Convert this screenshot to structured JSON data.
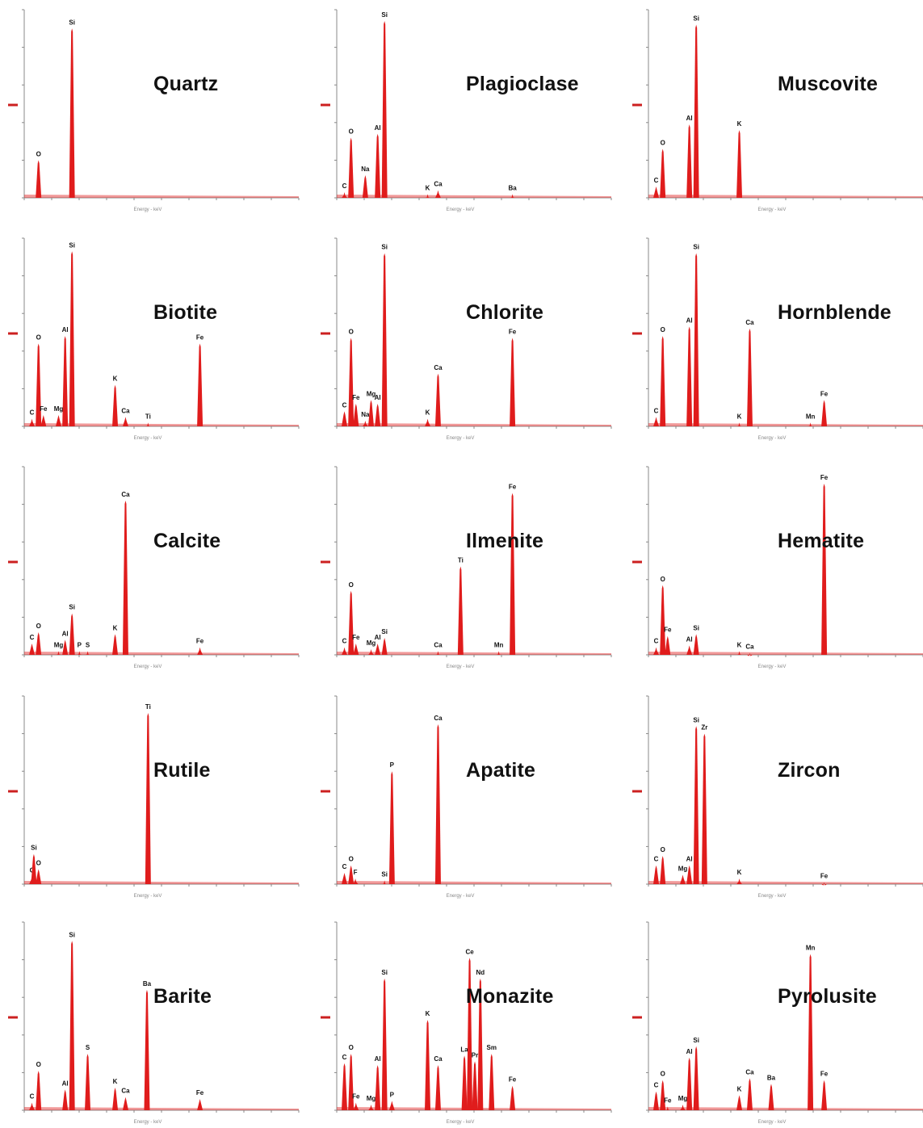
{
  "figure": {
    "x_axis_label": "Energy - keV",
    "colors": {
      "spectrum": "#e01c1c",
      "axis": "#888888",
      "marker": "#cc2020",
      "text": "#111111"
    }
  },
  "chart_data": [
    {
      "type": "area",
      "title": "Quartz",
      "x_range": [
        0,
        10
      ],
      "y_range": [
        0,
        1
      ],
      "peaks": [
        {
          "element": "O",
          "kev": 0.52,
          "height": 0.2
        },
        {
          "element": "Si",
          "kev": 1.74,
          "height": 0.9
        }
      ]
    },
    {
      "type": "area",
      "title": "Plagioclase",
      "x_range": [
        0,
        10
      ],
      "y_range": [
        0,
        1
      ],
      "peaks": [
        {
          "element": "C",
          "kev": 0.28,
          "height": 0.03
        },
        {
          "element": "O",
          "kev": 0.52,
          "height": 0.32
        },
        {
          "element": "Na",
          "kev": 1.04,
          "height": 0.12
        },
        {
          "element": "Al",
          "kev": 1.49,
          "height": 0.34
        },
        {
          "element": "Si",
          "kev": 1.74,
          "height": 0.94
        },
        {
          "element": "K",
          "kev": 3.31,
          "height": 0.02
        },
        {
          "element": "Ca",
          "kev": 3.69,
          "height": 0.04
        },
        {
          "element": "Ba",
          "kev": 6.4,
          "height": 0.02
        }
      ]
    },
    {
      "type": "area",
      "title": "Muscovite",
      "x_range": [
        0,
        10
      ],
      "y_range": [
        0,
        1
      ],
      "peaks": [
        {
          "element": "C",
          "kev": 0.28,
          "height": 0.06
        },
        {
          "element": "O",
          "kev": 0.52,
          "height": 0.26
        },
        {
          "element": "Al",
          "kev": 1.49,
          "height": 0.39
        },
        {
          "element": "Si",
          "kev": 1.74,
          "height": 0.92
        },
        {
          "element": "K",
          "kev": 3.31,
          "height": 0.36
        }
      ]
    },
    {
      "type": "area",
      "title": "Biotite",
      "x_range": [
        0,
        10
      ],
      "y_range": [
        0,
        1
      ],
      "peaks": [
        {
          "element": "C",
          "kev": 0.28,
          "height": 0.04
        },
        {
          "element": "O",
          "kev": 0.52,
          "height": 0.44
        },
        {
          "element": "Fe",
          "kev": 0.7,
          "height": 0.06
        },
        {
          "element": "Mg",
          "kev": 1.25,
          "height": 0.06
        },
        {
          "element": "Al",
          "kev": 1.49,
          "height": 0.48
        },
        {
          "element": "Si",
          "kev": 1.74,
          "height": 0.93
        },
        {
          "element": "K",
          "kev": 3.31,
          "height": 0.22
        },
        {
          "element": "Ca",
          "kev": 3.69,
          "height": 0.05
        },
        {
          "element": "Ti",
          "kev": 4.51,
          "height": 0.02
        },
        {
          "element": "Fe",
          "kev": 6.4,
          "height": 0.44
        }
      ]
    },
    {
      "type": "area",
      "title": "Chlorite",
      "x_range": [
        0,
        10
      ],
      "y_range": [
        0,
        1
      ],
      "peaks": [
        {
          "element": "C",
          "kev": 0.28,
          "height": 0.08
        },
        {
          "element": "O",
          "kev": 0.52,
          "height": 0.47
        },
        {
          "element": "Fe",
          "kev": 0.7,
          "height": 0.12
        },
        {
          "element": "Na",
          "kev": 1.04,
          "height": 0.03
        },
        {
          "element": "Mg",
          "kev": 1.25,
          "height": 0.14
        },
        {
          "element": "Al",
          "kev": 1.49,
          "height": 0.12
        },
        {
          "element": "Si",
          "kev": 1.74,
          "height": 0.92
        },
        {
          "element": "K",
          "kev": 3.31,
          "height": 0.04
        },
        {
          "element": "Ca",
          "kev": 3.69,
          "height": 0.28
        },
        {
          "element": "Fe",
          "kev": 6.4,
          "height": 0.47
        }
      ]
    },
    {
      "type": "area",
      "title": "Hornblende",
      "x_range": [
        0,
        10
      ],
      "y_range": [
        0,
        1
      ],
      "peaks": [
        {
          "element": "C",
          "kev": 0.28,
          "height": 0.05
        },
        {
          "element": "O",
          "kev": 0.52,
          "height": 0.48
        },
        {
          "element": "Al",
          "kev": 1.49,
          "height": 0.53
        },
        {
          "element": "Si",
          "kev": 1.74,
          "height": 0.92
        },
        {
          "element": "K",
          "kev": 3.31,
          "height": 0.02
        },
        {
          "element": "Ca",
          "kev": 3.69,
          "height": 0.52
        },
        {
          "element": "Mn",
          "kev": 5.9,
          "height": 0.02
        },
        {
          "element": "Fe",
          "kev": 6.4,
          "height": 0.14
        }
      ]
    },
    {
      "type": "area",
      "title": "Calcite",
      "x_range": [
        0,
        10
      ],
      "y_range": [
        0,
        1
      ],
      "peaks": [
        {
          "element": "C",
          "kev": 0.28,
          "height": 0.06
        },
        {
          "element": "O",
          "kev": 0.52,
          "height": 0.12
        },
        {
          "element": "Mg",
          "kev": 1.25,
          "height": 0.02
        },
        {
          "element": "Al",
          "kev": 1.49,
          "height": 0.08
        },
        {
          "element": "Si",
          "kev": 1.74,
          "height": 0.22
        },
        {
          "element": "P",
          "kev": 2.01,
          "height": 0.02
        },
        {
          "element": "S",
          "kev": 2.31,
          "height": 0.02
        },
        {
          "element": "K",
          "kev": 3.31,
          "height": 0.11
        },
        {
          "element": "Ca",
          "kev": 3.69,
          "height": 0.82
        },
        {
          "element": "Fe",
          "kev": 6.4,
          "height": 0.04
        }
      ]
    },
    {
      "type": "area",
      "title": "Ilmenite",
      "x_range": [
        0,
        10
      ],
      "y_range": [
        0,
        1
      ],
      "peaks": [
        {
          "element": "C",
          "kev": 0.28,
          "height": 0.04
        },
        {
          "element": "O",
          "kev": 0.52,
          "height": 0.34
        },
        {
          "element": "Fe",
          "kev": 0.7,
          "height": 0.06
        },
        {
          "element": "Mg",
          "kev": 1.25,
          "height": 0.03
        },
        {
          "element": "Al",
          "kev": 1.49,
          "height": 0.06
        },
        {
          "element": "Si",
          "kev": 1.74,
          "height": 0.09
        },
        {
          "element": "Ca",
          "kev": 3.69,
          "height": 0.02
        },
        {
          "element": "Ti",
          "kev": 4.51,
          "height": 0.47
        },
        {
          "element": "Mn",
          "kev": 5.9,
          "height": 0.02
        },
        {
          "element": "Fe",
          "kev": 6.4,
          "height": 0.86
        }
      ]
    },
    {
      "type": "area",
      "title": "Hematite",
      "x_range": [
        0,
        10
      ],
      "y_range": [
        0,
        1
      ],
      "peaks": [
        {
          "element": "C",
          "kev": 0.28,
          "height": 0.04
        },
        {
          "element": "O",
          "kev": 0.52,
          "height": 0.37
        },
        {
          "element": "Fe",
          "kev": 0.7,
          "height": 0.1
        },
        {
          "element": "Al",
          "kev": 1.49,
          "height": 0.05
        },
        {
          "element": "Si",
          "kev": 1.74,
          "height": 0.11
        },
        {
          "element": "K",
          "kev": 3.31,
          "height": 0.02
        },
        {
          "element": "Ca",
          "kev": 3.69,
          "height": 0.01
        },
        {
          "element": "Fe",
          "kev": 6.4,
          "height": 0.91
        }
      ]
    },
    {
      "type": "area",
      "title": "Rutile",
      "x_range": [
        0,
        10
      ],
      "y_range": [
        0,
        1
      ],
      "peaks": [
        {
          "element": "C",
          "kev": 0.28,
          "height": 0.04
        },
        {
          "element": "Si",
          "kev": 0.35,
          "height": 0.16
        },
        {
          "element": "O",
          "kev": 0.52,
          "height": 0.08
        },
        {
          "element": "Ti",
          "kev": 4.51,
          "height": 0.91
        }
      ]
    },
    {
      "type": "area",
      "title": "Apatite",
      "x_range": [
        0,
        10
      ],
      "y_range": [
        0,
        1
      ],
      "peaks": [
        {
          "element": "C",
          "kev": 0.28,
          "height": 0.06
        },
        {
          "element": "O",
          "kev": 0.52,
          "height": 0.1
        },
        {
          "element": "F",
          "kev": 0.68,
          "height": 0.03
        },
        {
          "element": "Si",
          "kev": 1.74,
          "height": 0.02
        },
        {
          "element": "P",
          "kev": 2.01,
          "height": 0.6
        },
        {
          "element": "Ca",
          "kev": 3.69,
          "height": 0.85
        }
      ]
    },
    {
      "type": "area",
      "title": "Zircon",
      "x_range": [
        0,
        10
      ],
      "y_range": [
        0,
        1
      ],
      "peaks": [
        {
          "element": "C",
          "kev": 0.28,
          "height": 0.1
        },
        {
          "element": "O",
          "kev": 0.52,
          "height": 0.15
        },
        {
          "element": "Mg",
          "kev": 1.25,
          "height": 0.05
        },
        {
          "element": "Al",
          "kev": 1.49,
          "height": 0.1
        },
        {
          "element": "Si",
          "kev": 1.74,
          "height": 0.84
        },
        {
          "element": "Zr",
          "kev": 2.04,
          "height": 0.8
        },
        {
          "element": "K",
          "kev": 3.31,
          "height": 0.03
        },
        {
          "element": "Fe",
          "kev": 6.4,
          "height": 0.01
        }
      ]
    },
    {
      "type": "area",
      "title": "Barite",
      "x_range": [
        0,
        10
      ],
      "y_range": [
        0,
        1
      ],
      "peaks": [
        {
          "element": "C",
          "kev": 0.28,
          "height": 0.04
        },
        {
          "element": "O",
          "kev": 0.52,
          "height": 0.21
        },
        {
          "element": "Al",
          "kev": 1.49,
          "height": 0.11
        },
        {
          "element": "Si",
          "kev": 1.74,
          "height": 0.9
        },
        {
          "element": "S",
          "kev": 2.31,
          "height": 0.3
        },
        {
          "element": "K",
          "kev": 3.31,
          "height": 0.12
        },
        {
          "element": "Ca",
          "kev": 3.69,
          "height": 0.07
        },
        {
          "element": "Ba",
          "kev": 4.47,
          "height": 0.64
        },
        {
          "element": "Fe",
          "kev": 6.4,
          "height": 0.06
        }
      ]
    },
    {
      "type": "area",
      "title": "Monazite",
      "x_range": [
        0,
        10
      ],
      "y_range": [
        0,
        1
      ],
      "peaks": [
        {
          "element": "C",
          "kev": 0.28,
          "height": 0.25
        },
        {
          "element": "O",
          "kev": 0.52,
          "height": 0.3
        },
        {
          "element": "Fe",
          "kev": 0.7,
          "height": 0.04
        },
        {
          "element": "Mg",
          "kev": 1.25,
          "height": 0.03
        },
        {
          "element": "Al",
          "kev": 1.49,
          "height": 0.24
        },
        {
          "element": "P",
          "kev": 2.01,
          "height": 0.05
        },
        {
          "element": "Si",
          "kev": 1.74,
          "height": 0.7
        },
        {
          "element": "K",
          "kev": 3.31,
          "height": 0.48
        },
        {
          "element": "Ca",
          "kev": 3.69,
          "height": 0.24
        },
        {
          "element": "La",
          "kev": 4.65,
          "height": 0.29
        },
        {
          "element": "Ce",
          "kev": 4.84,
          "height": 0.81
        },
        {
          "element": "Pr",
          "kev": 5.03,
          "height": 0.26
        },
        {
          "element": "Nd",
          "kev": 5.23,
          "height": 0.7
        },
        {
          "element": "Sm",
          "kev": 5.64,
          "height": 0.3
        },
        {
          "element": "Fe",
          "kev": 6.4,
          "height": 0.13
        }
      ]
    },
    {
      "type": "area",
      "title": "Pyrolusite",
      "x_range": [
        0,
        10
      ],
      "y_range": [
        0,
        1
      ],
      "peaks": [
        {
          "element": "C",
          "kev": 0.28,
          "height": 0.1
        },
        {
          "element": "O",
          "kev": 0.52,
          "height": 0.16
        },
        {
          "element": "Fe",
          "kev": 0.7,
          "height": 0.02
        },
        {
          "element": "Mg",
          "kev": 1.25,
          "height": 0.03
        },
        {
          "element": "Al",
          "kev": 1.49,
          "height": 0.28
        },
        {
          "element": "Si",
          "kev": 1.74,
          "height": 0.34
        },
        {
          "element": "K",
          "kev": 3.31,
          "height": 0.08
        },
        {
          "element": "Ca",
          "kev": 3.69,
          "height": 0.17
        },
        {
          "element": "Ba",
          "kev": 4.47,
          "height": 0.14
        },
        {
          "element": "Mn",
          "kev": 5.9,
          "height": 0.83
        },
        {
          "element": "Fe",
          "kev": 6.4,
          "height": 0.16
        }
      ]
    }
  ]
}
